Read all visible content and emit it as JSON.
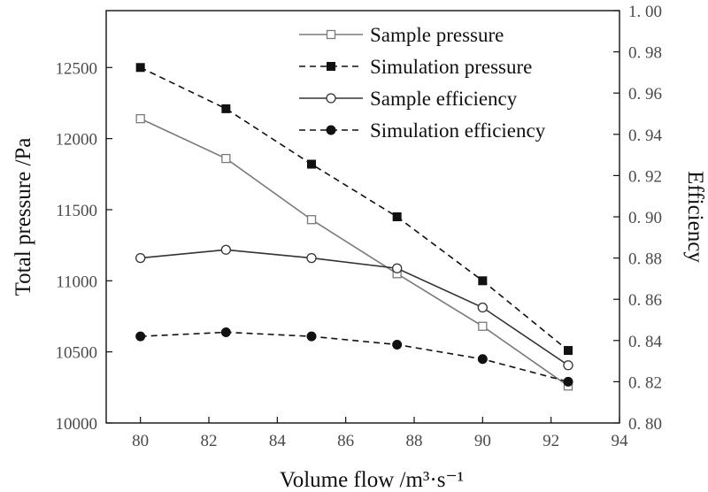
{
  "chart_data": {
    "type": "line",
    "x": [
      80,
      82.5,
      85,
      87.5,
      90,
      92.5
    ],
    "xlabel": "Volume flow /m³·s⁻¹",
    "ylabel": "Total pressure /Pa",
    "y2label": "Efficiency",
    "xlim": [
      79,
      94
    ],
    "ylim": [
      10000,
      12900
    ],
    "y2lim": [
      0.8,
      1.0
    ],
    "xticks": [
      80,
      82,
      84,
      86,
      88,
      90,
      92,
      94
    ],
    "yticks": [
      10000,
      10500,
      11000,
      11500,
      12000,
      12500
    ],
    "y2ticks": [
      0.8,
      0.82,
      0.84,
      0.86,
      0.88,
      0.9,
      0.92,
      0.94,
      0.96,
      0.98,
      1.0
    ],
    "legend_position": "top-right",
    "grid": false,
    "series": [
      {
        "name": "Sample pressure",
        "axis": "left",
        "line": "solid",
        "marker": "open-square",
        "color": "#7a7a7a",
        "values": [
          12140,
          11860,
          11430,
          11050,
          10680,
          10260
        ]
      },
      {
        "name": "Simulation pressure",
        "axis": "left",
        "line": "dashed",
        "marker": "filled-square",
        "color": "#111111",
        "values": [
          12500,
          12210,
          11820,
          11450,
          11000,
          10510
        ]
      },
      {
        "name": "Sample efficiency",
        "axis": "right",
        "line": "solid",
        "marker": "open-circle",
        "color": "#333333",
        "values": [
          0.88,
          0.884,
          0.88,
          0.875,
          0.856,
          0.828
        ]
      },
      {
        "name": "Simulation efficiency",
        "axis": "right",
        "line": "dashed",
        "marker": "filled-circle",
        "color": "#111111",
        "values": [
          0.842,
          0.844,
          0.842,
          0.838,
          0.831,
          0.82
        ]
      }
    ]
  }
}
